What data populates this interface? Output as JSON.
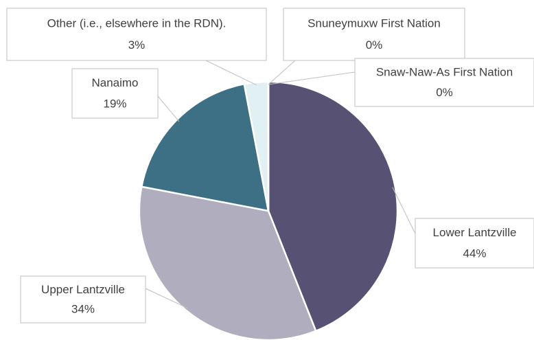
{
  "chart_data": {
    "type": "pie",
    "categories": [
      "Lower Lantzville",
      "Upper Lantzville",
      "Nanaimo",
      "Other (i.e., elsewhere in the RDN).",
      "Snuneymuxw First Nation",
      "Snaw-Naw-As First Nation"
    ],
    "values": [
      44,
      34,
      19,
      3,
      0,
      0
    ],
    "value_labels": [
      "44%",
      "34%",
      "19%",
      "3%",
      "0%",
      "0%"
    ],
    "colors": [
      "#575173",
      "#b0adbf",
      "#3d7085",
      "#e0f0f3",
      "#9fd3de",
      "#c8e6ec"
    ]
  }
}
